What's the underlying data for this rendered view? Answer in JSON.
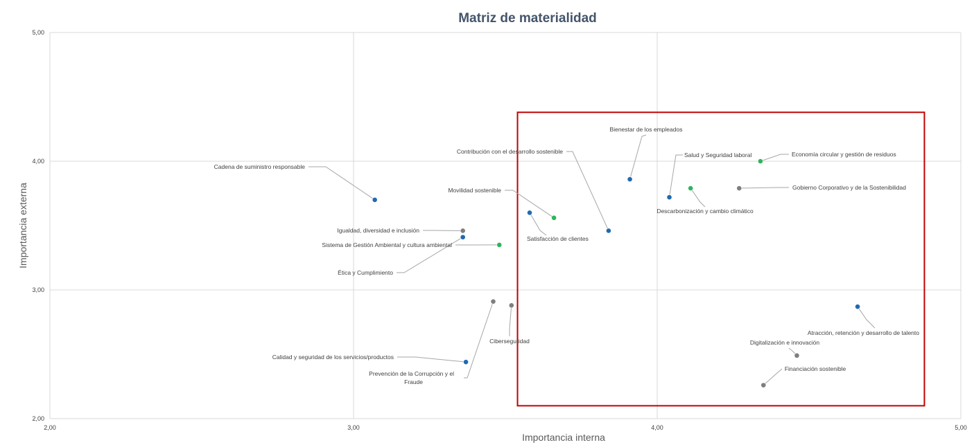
{
  "chart_data": {
    "type": "scatter",
    "title": "Matriz de materialidad",
    "xlabel": "Importancia interna",
    "ylabel": "Importancia externa",
    "xlim": [
      2.0,
      5.0
    ],
    "ylim": [
      2.0,
      5.0
    ],
    "x_ticks": [
      "2,00",
      "3,00",
      "4,00",
      "5,00"
    ],
    "y_ticks": [
      "2,00",
      "3,00",
      "4,00",
      "5,00"
    ],
    "grid": true,
    "legend": "none",
    "colors": {
      "blue": "#1F6BB0",
      "green": "#2DB55D",
      "gray": "#7F7F7F",
      "highlight": "#C00000"
    },
    "highlight_box": {
      "x": [
        3.54,
        4.88
      ],
      "y": [
        2.1,
        4.38
      ]
    },
    "points": [
      {
        "label": "Cadena de suministro responsable",
        "x": 3.07,
        "y": 3.7,
        "color": "blue"
      },
      {
        "label": "Igualdad, diversidad e inclusión",
        "x": 3.36,
        "y": 3.46,
        "color": "gray"
      },
      {
        "label": "Sistema de Gestión Ambiental y cultura ambiental",
        "x": 3.48,
        "y": 3.35,
        "color": "green"
      },
      {
        "label": "Ética y Cumplimiento",
        "x": 3.36,
        "y": 3.41,
        "color": "blue"
      },
      {
        "label": "Movilidad sostenible",
        "x": 3.66,
        "y": 3.56,
        "color": "green"
      },
      {
        "label": "Satisfacción de clientes",
        "x": 3.58,
        "y": 3.6,
        "color": "blue"
      },
      {
        "label": "Contribución con el desarrollo sostenible",
        "x": 3.84,
        "y": 3.46,
        "color": "blue"
      },
      {
        "label": "Bienestar de los empleados",
        "x": 3.91,
        "y": 3.86,
        "color": "blue"
      },
      {
        "label": "Salud y Seguridad laboral",
        "x": 4.04,
        "y": 3.72,
        "color": "blue"
      },
      {
        "label": "Descarbonización y cambio climático",
        "x": 4.11,
        "y": 3.79,
        "color": "green"
      },
      {
        "label": "Economía circular y gestión de residuos",
        "x": 4.34,
        "y": 4.0,
        "color": "green"
      },
      {
        "label": "Gobierno Corporativo  y de la Sostenibilidad",
        "x": 4.27,
        "y": 3.79,
        "color": "gray"
      },
      {
        "label": "Calidad y seguridad de los servicios/productos",
        "x": 3.37,
        "y": 2.44,
        "color": "blue"
      },
      {
        "label": "Prevención de la Corrupción y el Fraude",
        "x": 3.46,
        "y": 2.91,
        "color": "gray"
      },
      {
        "label": "Ciberseguridad",
        "x": 3.52,
        "y": 2.88,
        "color": "gray"
      },
      {
        "label": "Atracción, retención y desarrollo de talento",
        "x": 4.66,
        "y": 2.87,
        "color": "blue"
      },
      {
        "label": "Digitalización e innovación",
        "x": 4.46,
        "y": 2.49,
        "color": "gray"
      },
      {
        "label": "Financiación sostenible",
        "x": 4.35,
        "y": 2.26,
        "color": "gray"
      }
    ]
  }
}
